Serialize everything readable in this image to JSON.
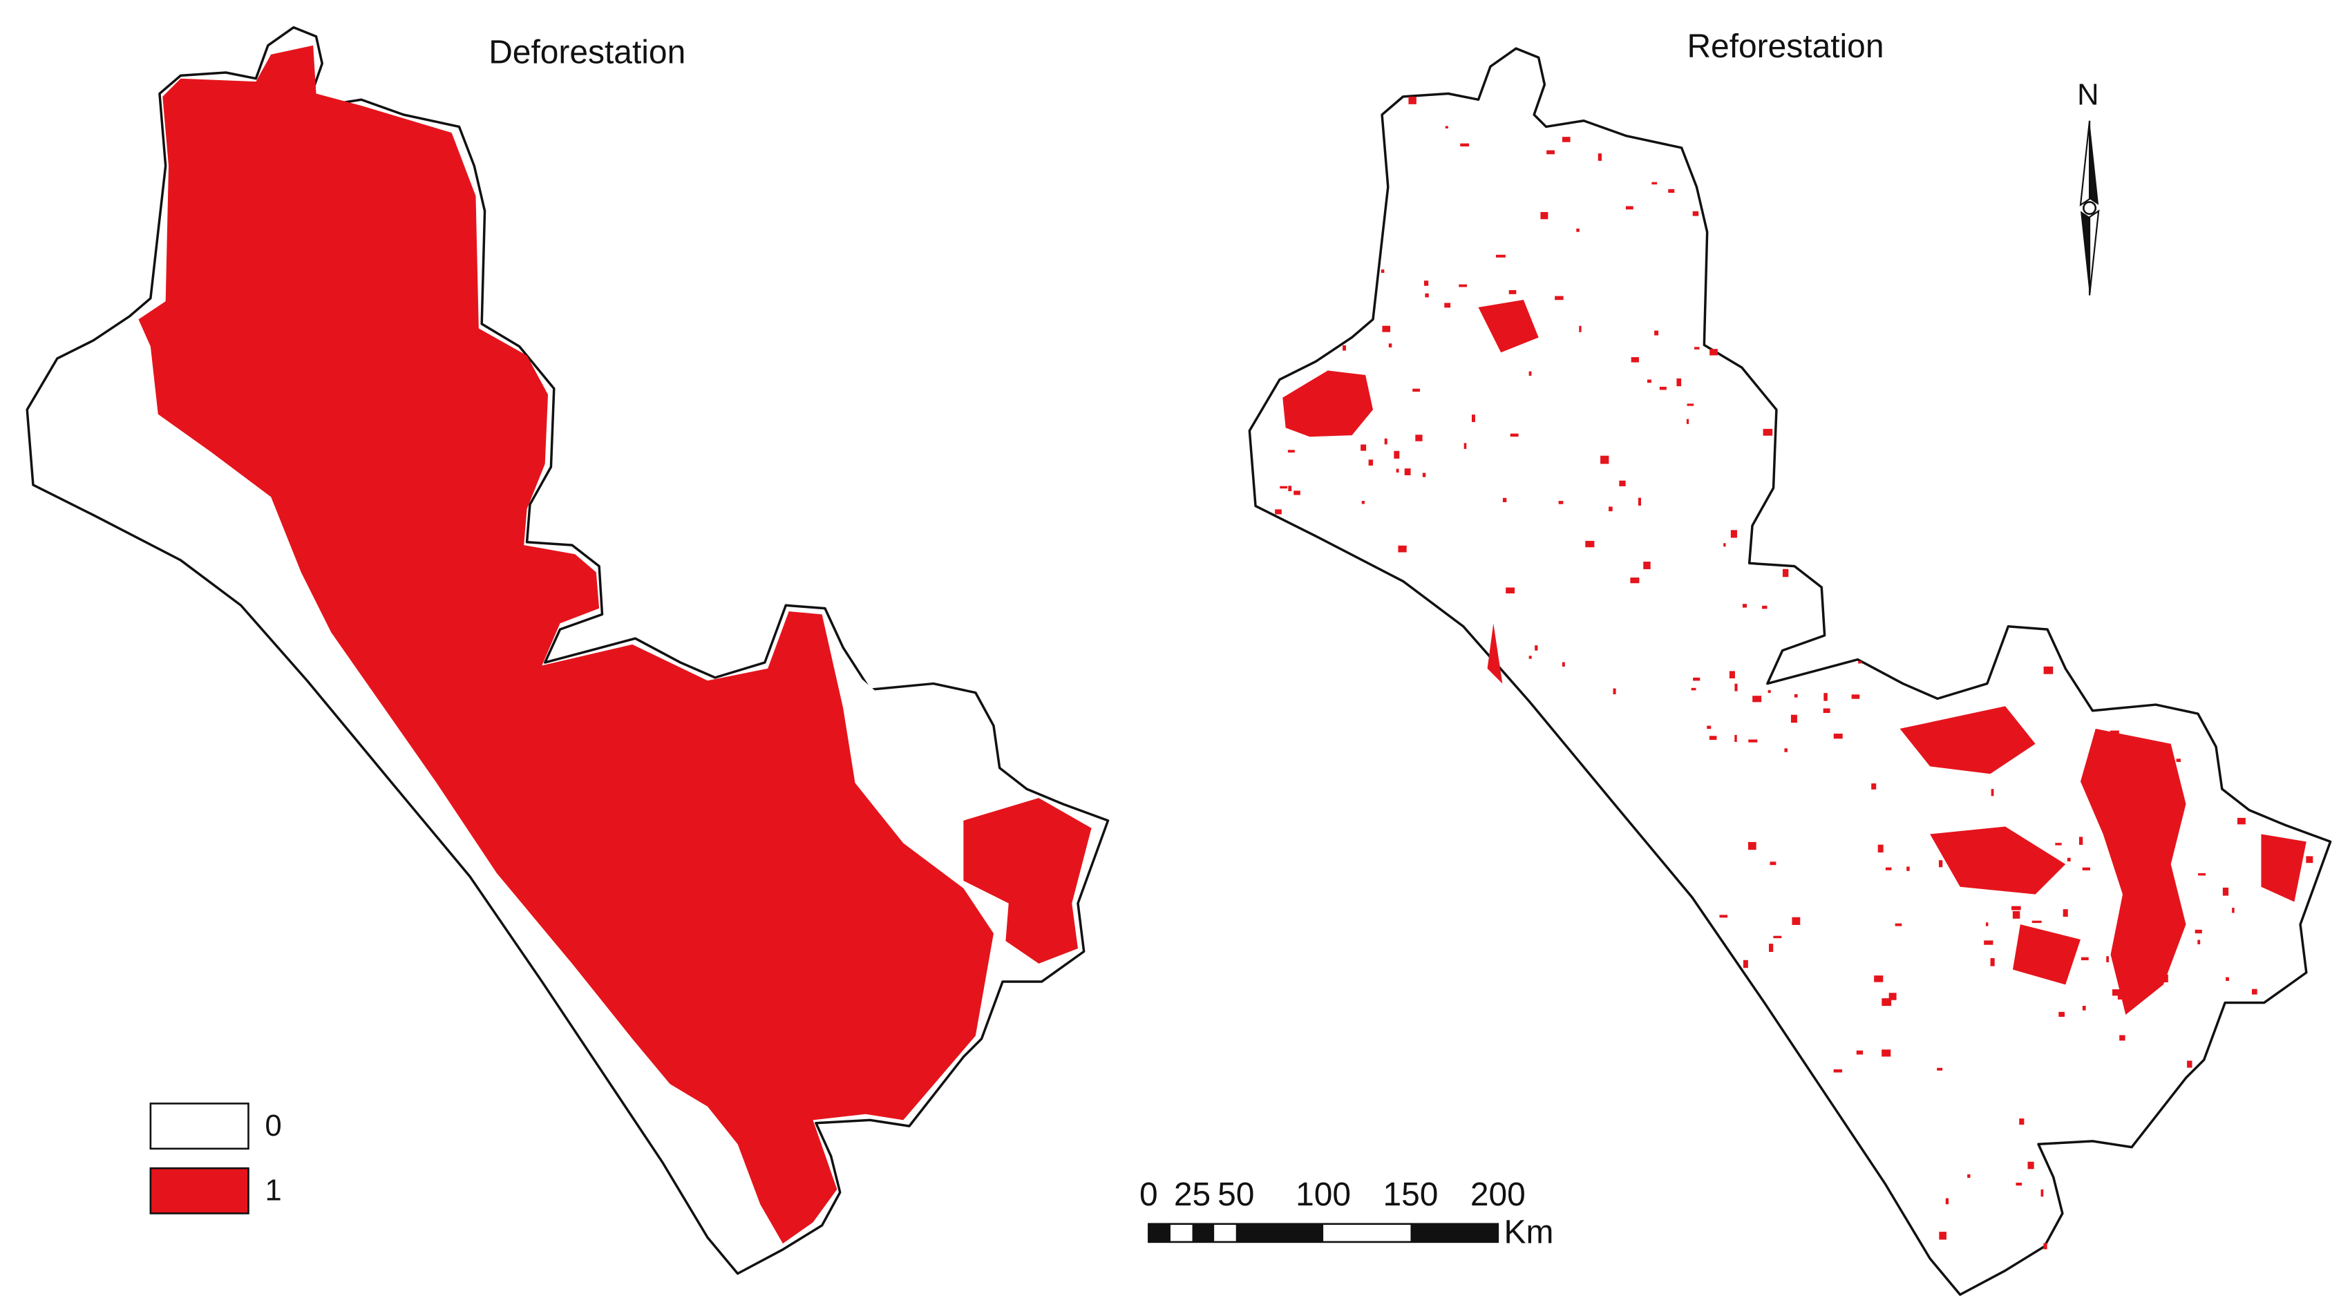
{
  "maps": [
    {
      "title": "Deforestation"
    },
    {
      "title": "Reforestation"
    }
  ],
  "legend": [
    {
      "label": "0",
      "color": "#ffffff"
    },
    {
      "label": "1",
      "color": "#e5141c"
    }
  ],
  "scale_bar": {
    "ticks": [
      0,
      25,
      50,
      100,
      150,
      200
    ],
    "unit": "Km"
  },
  "north_arrow": {
    "label": "N"
  }
}
